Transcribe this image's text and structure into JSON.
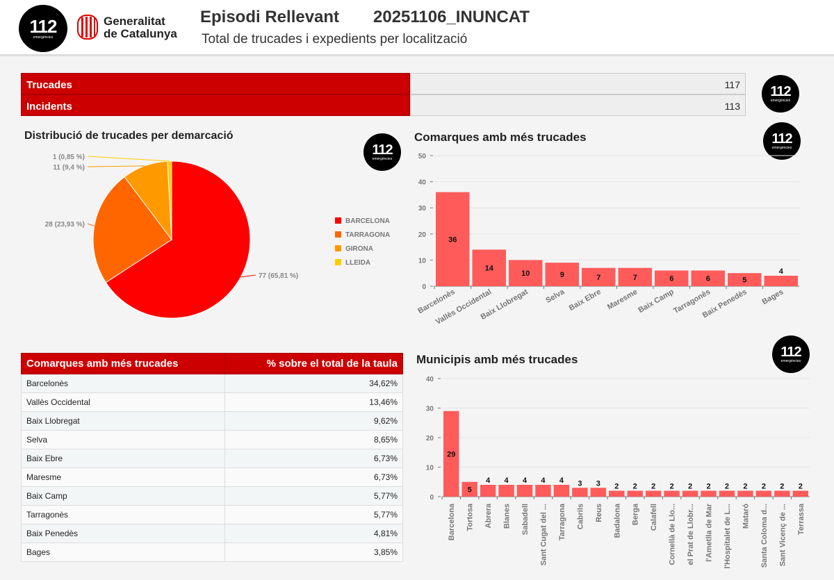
{
  "header": {
    "logo_112": "112",
    "logo_112_sub": "emergències",
    "gen_line1": "Generalitat",
    "gen_line2": "de Catalunya",
    "title": "Episodi Rellevant",
    "code": "20251106_INUNCAT",
    "subtitle": "Total de trucades i expedients per localització"
  },
  "summary": [
    {
      "label": "Trucades",
      "value": "117"
    },
    {
      "label": "Incidents",
      "value": "113"
    }
  ],
  "colors": {
    "accent": "#cc0000",
    "bar": "#ff5b5b"
  },
  "chart_data": [
    {
      "type": "pie",
      "title": "Distribució de trucades per demarcació",
      "slices": [
        {
          "name": "BARCELONA",
          "value": 77,
          "label": "77 (65,81 %)",
          "color": "#ff0000"
        },
        {
          "name": "TARRAGONA",
          "value": 28,
          "label": "28 (23,93 %)",
          "color": "#ff6600"
        },
        {
          "name": "GIRONA",
          "value": 11,
          "label": "11 (9,4 %)",
          "color": "#ff9900"
        },
        {
          "name": "LLEIDA",
          "value": 1,
          "label": "1 (0,85 %)",
          "color": "#ffcc00"
        }
      ],
      "legend": "right"
    },
    {
      "type": "bar",
      "title": "Comarques amb més trucades",
      "categories": [
        "Barcelonès",
        "Vallès Occidental",
        "Baix Llobregat",
        "Selva",
        "Baix Ebre",
        "Maresme",
        "Baix Camp",
        "Tarragonès",
        "Baix Penedès",
        "Bages"
      ],
      "values": [
        36,
        14,
        10,
        9,
        7,
        7,
        6,
        6,
        5,
        4
      ],
      "ylim": [
        0,
        50
      ],
      "yticks": [
        0,
        10,
        20,
        30,
        40,
        50
      ],
      "grid": true
    },
    {
      "type": "bar",
      "title": "Municipis amb més trucades",
      "categories": [
        "Barcelona",
        "Tortosa",
        "Abrera",
        "Blanes",
        "Sabadell",
        "Sant Cugat del ...",
        "Tarragona",
        "Cabrils",
        "Reus",
        "Badalona",
        "Berga",
        "Calafell",
        "Cornellà de Llo...",
        "el Prat de Llobr...",
        "l'Ametlla de Mar",
        "l'Hospitalet de L...",
        "Mataró",
        "Santa Coloma d...",
        "Sant Vicenç de ...",
        "Terrassa"
      ],
      "values": [
        29,
        5,
        4,
        4,
        4,
        4,
        4,
        3,
        3,
        2,
        2,
        2,
        2,
        2,
        2,
        2,
        2,
        2,
        2,
        2
      ],
      "ylim": [
        0,
        40
      ],
      "yticks": [
        0,
        10,
        20,
        30,
        40
      ],
      "grid": true
    }
  ],
  "table": {
    "headers": [
      "Comarques amb més trucades",
      "% sobre el total de la taula"
    ],
    "rows": [
      [
        "Barcelonès",
        "34,62%"
      ],
      [
        "Vallès Occidental",
        "13,46%"
      ],
      [
        "Baix Llobregat",
        "9,62%"
      ],
      [
        "Selva",
        "8,65%"
      ],
      [
        "Baix Ebre",
        "6,73%"
      ],
      [
        "Maresme",
        "6,73%"
      ],
      [
        "Baix Camp",
        "5,77%"
      ],
      [
        "Tarragonès",
        "5,77%"
      ],
      [
        "Baix Penedès",
        "4,81%"
      ],
      [
        "Bages",
        "3,85%"
      ]
    ]
  }
}
